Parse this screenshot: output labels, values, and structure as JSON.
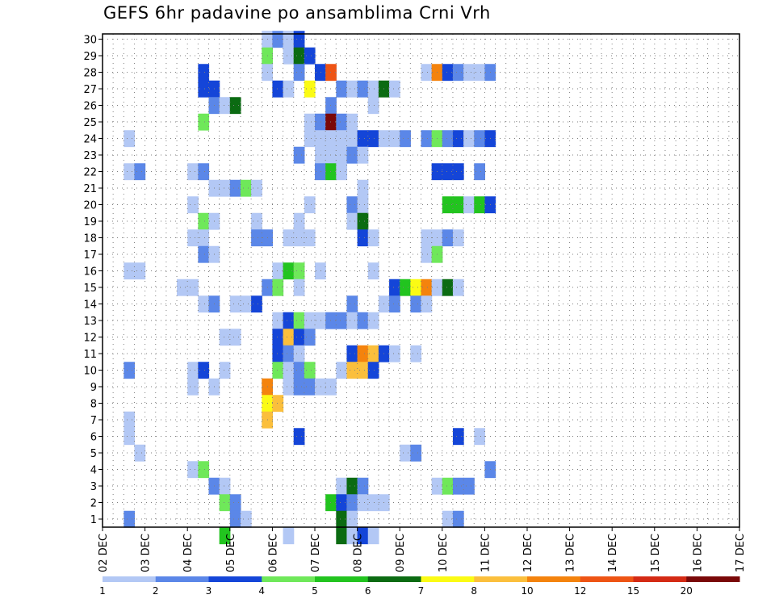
{
  "chart_data": {
    "type": "heatmap",
    "title": "GEFS 6hr padavine po ansamblima Crni Vrh",
    "x_tick_labels": [
      "02 DEC",
      "03 DEC",
      "04 DEC",
      "05 DEC",
      "06 DEC",
      "07 DEC",
      "08 DEC",
      "09 DEC",
      "10 DEC",
      "11 DEC",
      "12 DEC",
      "13 DEC",
      "14 DEC",
      "15 DEC",
      "16 DEC",
      "17 DEC"
    ],
    "x_range": [
      "02 DEC 00Z",
      "17 DEC 00Z"
    ],
    "x_step_hours": 6,
    "y_tick_labels": [
      "1",
      "2",
      "3",
      "4",
      "5",
      "6",
      "7",
      "8",
      "9",
      "10",
      "11",
      "12",
      "13",
      "14",
      "15",
      "16",
      "17",
      "18",
      "19",
      "20",
      "21",
      "22",
      "23",
      "24",
      "25",
      "26",
      "27",
      "28",
      "29",
      "30"
    ],
    "y_range": [
      0,
      30
    ],
    "grid": "dotted",
    "colorbar": {
      "labels": [
        "1",
        "2",
        "3",
        "4",
        "5",
        "6",
        "7",
        "8",
        "10",
        "12",
        "15",
        "20"
      ],
      "colors": [
        "#b3c8f5",
        "#5b87e8",
        "#1445d8",
        "#6fe85a",
        "#22c41f",
        "#0b6b12",
        "#fbfb14",
        "#fbbf3c",
        "#f4830d",
        "#ee5414",
        "#d42a14",
        "#7a0808"
      ]
    },
    "cells_units": "member, 6-hour step from start, color class (0=1-2, 1=2-3, 2=3-4, 3=4-5, 4=5-6, 5=6-7, 6=7-8, 7=8-10, 8=10-12, 9=12-15, 10=15-20, 11=20+)",
    "cells": [
      [
        30,
        15,
        0
      ],
      [
        30,
        16,
        1
      ],
      [
        30,
        17,
        0
      ],
      [
        30,
        18,
        2
      ],
      [
        29,
        15,
        3
      ],
      [
        29,
        17,
        0
      ],
      [
        29,
        18,
        5
      ],
      [
        29,
        19,
        2
      ],
      [
        28,
        9,
        2
      ],
      [
        28,
        15,
        0
      ],
      [
        28,
        18,
        1
      ],
      [
        28,
        20,
        2
      ],
      [
        28,
        21,
        9
      ],
      [
        28,
        30,
        0
      ],
      [
        28,
        31,
        8
      ],
      [
        28,
        32,
        2
      ],
      [
        28,
        33,
        1
      ],
      [
        28,
        34,
        0
      ],
      [
        28,
        35,
        0
      ],
      [
        28,
        36,
        1
      ],
      [
        27,
        9,
        2
      ],
      [
        27,
        10,
        2
      ],
      [
        27,
        16,
        2
      ],
      [
        27,
        17,
        0
      ],
      [
        27,
        19,
        6
      ],
      [
        27,
        22,
        1
      ],
      [
        27,
        23,
        0
      ],
      [
        27,
        24,
        1
      ],
      [
        27,
        25,
        0
      ],
      [
        27,
        26,
        5
      ],
      [
        27,
        27,
        0
      ],
      [
        26,
        10,
        1
      ],
      [
        26,
        11,
        0
      ],
      [
        26,
        12,
        5
      ],
      [
        26,
        21,
        1
      ],
      [
        26,
        25,
        0
      ],
      [
        25,
        9,
        3
      ],
      [
        25,
        19,
        0
      ],
      [
        25,
        20,
        1
      ],
      [
        25,
        21,
        11
      ],
      [
        25,
        22,
        1
      ],
      [
        25,
        23,
        0
      ],
      [
        24,
        2,
        0
      ],
      [
        24,
        19,
        0
      ],
      [
        24,
        20,
        0
      ],
      [
        24,
        21,
        0
      ],
      [
        24,
        22,
        0
      ],
      [
        24,
        23,
        0
      ],
      [
        24,
        24,
        2
      ],
      [
        24,
        25,
        2
      ],
      [
        24,
        26,
        0
      ],
      [
        24,
        27,
        0
      ],
      [
        24,
        28,
        1
      ],
      [
        24,
        30,
        1
      ],
      [
        24,
        31,
        3
      ],
      [
        24,
        32,
        1
      ],
      [
        24,
        33,
        2
      ],
      [
        24,
        34,
        0
      ],
      [
        24,
        35,
        1
      ],
      [
        24,
        36,
        2
      ],
      [
        23,
        18,
        1
      ],
      [
        23,
        20,
        0
      ],
      [
        23,
        21,
        0
      ],
      [
        23,
        22,
        0
      ],
      [
        23,
        23,
        1
      ],
      [
        23,
        24,
        0
      ],
      [
        22,
        2,
        0
      ],
      [
        22,
        3,
        1
      ],
      [
        22,
        8,
        0
      ],
      [
        22,
        9,
        1
      ],
      [
        22,
        20,
        1
      ],
      [
        22,
        21,
        4
      ],
      [
        22,
        22,
        0
      ],
      [
        22,
        31,
        2
      ],
      [
        22,
        32,
        2
      ],
      [
        22,
        33,
        2
      ],
      [
        22,
        35,
        1
      ],
      [
        21,
        10,
        0
      ],
      [
        21,
        11,
        0
      ],
      [
        21,
        12,
        1
      ],
      [
        21,
        13,
        3
      ],
      [
        21,
        14,
        0
      ],
      [
        21,
        24,
        0
      ],
      [
        20,
        8,
        0
      ],
      [
        20,
        19,
        0
      ],
      [
        20,
        23,
        1
      ],
      [
        20,
        24,
        0
      ],
      [
        20,
        32,
        4
      ],
      [
        20,
        33,
        4
      ],
      [
        20,
        34,
        0
      ],
      [
        20,
        35,
        4
      ],
      [
        20,
        36,
        2
      ],
      [
        19,
        9,
        3
      ],
      [
        19,
        10,
        0
      ],
      [
        19,
        14,
        0
      ],
      [
        19,
        18,
        0
      ],
      [
        19,
        23,
        0
      ],
      [
        19,
        24,
        5
      ],
      [
        18,
        8,
        0
      ],
      [
        18,
        9,
        0
      ],
      [
        18,
        14,
        1
      ],
      [
        18,
        15,
        1
      ],
      [
        18,
        17,
        0
      ],
      [
        18,
        18,
        0
      ],
      [
        18,
        19,
        0
      ],
      [
        18,
        24,
        2
      ],
      [
        18,
        25,
        0
      ],
      [
        18,
        30,
        0
      ],
      [
        18,
        31,
        0
      ],
      [
        18,
        32,
        1
      ],
      [
        18,
        33,
        0
      ],
      [
        17,
        9,
        1
      ],
      [
        17,
        10,
        0
      ],
      [
        17,
        30,
        0
      ],
      [
        17,
        31,
        3
      ],
      [
        16,
        2,
        0
      ],
      [
        16,
        3,
        0
      ],
      [
        16,
        16,
        0
      ],
      [
        16,
        17,
        4
      ],
      [
        16,
        18,
        3
      ],
      [
        16,
        20,
        0
      ],
      [
        16,
        25,
        0
      ],
      [
        15,
        7,
        0
      ],
      [
        15,
        8,
        0
      ],
      [
        15,
        15,
        1
      ],
      [
        15,
        16,
        3
      ],
      [
        15,
        18,
        0
      ],
      [
        15,
        27,
        2
      ],
      [
        15,
        28,
        4
      ],
      [
        15,
        29,
        6
      ],
      [
        15,
        30,
        8
      ],
      [
        15,
        31,
        0
      ],
      [
        15,
        32,
        5
      ],
      [
        15,
        33,
        0
      ],
      [
        14,
        9,
        0
      ],
      [
        14,
        10,
        1
      ],
      [
        14,
        12,
        0
      ],
      [
        14,
        13,
        0
      ],
      [
        14,
        14,
        2
      ],
      [
        14,
        23,
        1
      ],
      [
        14,
        26,
        0
      ],
      [
        14,
        27,
        1
      ],
      [
        14,
        29,
        1
      ],
      [
        14,
        30,
        0
      ],
      [
        13,
        16,
        0
      ],
      [
        13,
        17,
        2
      ],
      [
        13,
        18,
        3
      ],
      [
        13,
        19,
        0
      ],
      [
        13,
        20,
        0
      ],
      [
        13,
        21,
        1
      ],
      [
        13,
        22,
        1
      ],
      [
        13,
        23,
        0
      ],
      [
        13,
        24,
        1
      ],
      [
        13,
        25,
        0
      ],
      [
        12,
        11,
        0
      ],
      [
        12,
        12,
        0
      ],
      [
        12,
        16,
        2
      ],
      [
        12,
        17,
        7
      ],
      [
        12,
        18,
        2
      ],
      [
        12,
        19,
        1
      ],
      [
        11,
        16,
        2
      ],
      [
        11,
        17,
        1
      ],
      [
        11,
        18,
        0
      ],
      [
        11,
        23,
        2
      ],
      [
        11,
        24,
        8
      ],
      [
        11,
        25,
        7
      ],
      [
        11,
        26,
        2
      ],
      [
        11,
        27,
        0
      ],
      [
        11,
        29,
        0
      ],
      [
        10,
        2,
        1
      ],
      [
        10,
        8,
        0
      ],
      [
        10,
        9,
        2
      ],
      [
        10,
        11,
        0
      ],
      [
        10,
        16,
        3
      ],
      [
        10,
        17,
        0
      ],
      [
        10,
        18,
        1
      ],
      [
        10,
        19,
        3
      ],
      [
        10,
        22,
        0
      ],
      [
        10,
        23,
        7
      ],
      [
        10,
        24,
        7
      ],
      [
        10,
        25,
        2
      ],
      [
        9,
        8,
        0
      ],
      [
        9,
        10,
        0
      ],
      [
        9,
        15,
        8
      ],
      [
        9,
        17,
        0
      ],
      [
        9,
        18,
        1
      ],
      [
        9,
        19,
        1
      ],
      [
        9,
        20,
        0
      ],
      [
        9,
        21,
        0
      ],
      [
        8,
        15,
        6
      ],
      [
        8,
        16,
        7
      ],
      [
        7,
        2,
        0
      ],
      [
        7,
        15,
        7
      ],
      [
        6,
        2,
        0
      ],
      [
        6,
        18,
        2
      ],
      [
        6,
        33,
        2
      ],
      [
        6,
        35,
        0
      ],
      [
        5,
        3,
        0
      ],
      [
        5,
        28,
        0
      ],
      [
        5,
        29,
        1
      ],
      [
        4,
        8,
        0
      ],
      [
        4,
        9,
        3
      ],
      [
        4,
        36,
        1
      ],
      [
        3,
        10,
        1
      ],
      [
        3,
        11,
        0
      ],
      [
        3,
        22,
        0
      ],
      [
        3,
        23,
        5
      ],
      [
        3,
        24,
        1
      ],
      [
        3,
        31,
        0
      ],
      [
        3,
        32,
        3
      ],
      [
        3,
        33,
        1
      ],
      [
        3,
        34,
        1
      ],
      [
        2,
        11,
        3
      ],
      [
        2,
        12,
        1
      ],
      [
        2,
        21,
        4
      ],
      [
        2,
        22,
        2
      ],
      [
        2,
        23,
        1
      ],
      [
        2,
        24,
        0
      ],
      [
        2,
        25,
        0
      ],
      [
        2,
        26,
        0
      ],
      [
        1,
        2,
        1
      ],
      [
        1,
        12,
        1
      ],
      [
        1,
        13,
        0
      ],
      [
        1,
        22,
        5
      ],
      [
        1,
        23,
        0
      ],
      [
        1,
        32,
        0
      ],
      [
        1,
        33,
        1
      ],
      [
        0,
        11,
        4
      ],
      [
        0,
        17,
        0
      ],
      [
        0,
        22,
        5
      ],
      [
        0,
        23,
        0
      ],
      [
        0,
        24,
        2
      ],
      [
        0,
        25,
        0
      ]
    ]
  }
}
